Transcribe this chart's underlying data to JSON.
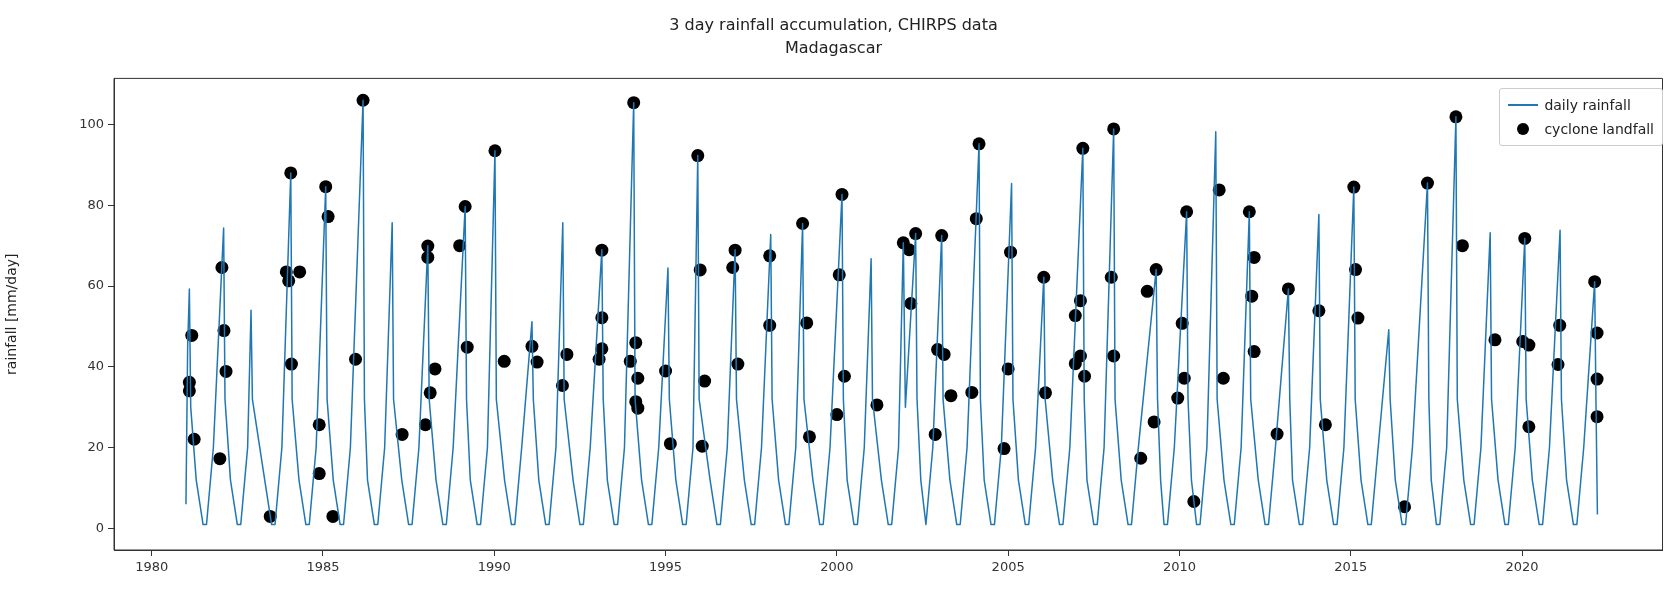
{
  "chart_data": {
    "type": "line",
    "title": "3 day rainfall accumulation, CHIRPS data",
    "subtitle": "Madagascar",
    "ylabel": "rainfall [mm/day]",
    "xlim": [
      1978.9,
      2024.1
    ],
    "ylim": [
      -5.3,
      111.4
    ],
    "xticks": [
      1980,
      1985,
      1990,
      1995,
      2000,
      2005,
      2010,
      2015,
      2020
    ],
    "yticks": [
      0,
      20,
      40,
      60,
      80,
      100
    ],
    "legend": "top right",
    "series": [
      {
        "name": "daily rainfall",
        "color": "#1f77b4",
        "line_style": "solid",
        "marker": "none",
        "x": [
          1981.0,
          1981.05,
          1981.1,
          1981.14,
          1981.3,
          1981.5,
          1981.6,
          1981.8,
          1982.1,
          1982.14,
          1982.3,
          1982.5,
          1982.6,
          1982.8,
          1982.9,
          1982.94,
          1983.3,
          1983.5,
          1983.6,
          1983.8,
          1984.06,
          1984.1,
          1984.3,
          1984.5,
          1984.6,
          1984.8,
          1985.08,
          1985.12,
          1985.3,
          1985.5,
          1985.6,
          1985.8,
          1986.17,
          1986.21,
          1986.3,
          1986.5,
          1986.6,
          1986.8,
          1987.02,
          1987.06,
          1987.3,
          1987.5,
          1987.6,
          1987.8,
          1988.06,
          1988.1,
          1988.3,
          1988.5,
          1988.6,
          1988.8,
          1989.15,
          1989.19,
          1989.3,
          1989.5,
          1989.6,
          1989.8,
          1990.02,
          1990.06,
          1990.3,
          1990.5,
          1990.6,
          1990.8,
          1991.1,
          1991.14,
          1991.3,
          1991.5,
          1991.6,
          1991.8,
          1992.0,
          1992.04,
          1992.3,
          1992.5,
          1992.6,
          1992.8,
          1993.14,
          1993.18,
          1993.3,
          1993.5,
          1993.6,
          1993.8,
          1994.07,
          1994.11,
          1994.3,
          1994.5,
          1994.6,
          1994.8,
          1995.07,
          1995.11,
          1995.3,
          1995.5,
          1995.6,
          1995.8,
          1995.94,
          1995.98,
          1996.3,
          1996.5,
          1996.6,
          1996.8,
          1997.03,
          1997.07,
          1997.3,
          1997.5,
          1997.6,
          1997.8,
          1998.07,
          1998.11,
          1998.3,
          1998.5,
          1998.6,
          1998.8,
          1999.0,
          1999.04,
          1999.3,
          1999.5,
          1999.6,
          1999.8,
          2000.15,
          2000.19,
          2000.3,
          2000.5,
          2000.6,
          2000.8,
          2001.0,
          2001.04,
          2001.3,
          2001.5,
          2001.6,
          2001.8,
          2001.94,
          2002.0,
          2002.3,
          2002.34,
          2002.45,
          2002.6,
          2002.8,
          2003.06,
          2003.1,
          2003.3,
          2003.5,
          2003.6,
          2003.8,
          2004.15,
          2004.19,
          2004.3,
          2004.5,
          2004.6,
          2004.8,
          2005.1,
          2005.14,
          2005.3,
          2005.5,
          2005.6,
          2005.8,
          2006.04,
          2006.08,
          2006.3,
          2006.5,
          2006.6,
          2006.8,
          2007.18,
          2007.22,
          2007.3,
          2007.5,
          2007.6,
          2007.8,
          2008.08,
          2008.12,
          2008.3,
          2008.5,
          2008.6,
          2008.8,
          2009.32,
          2009.36,
          2009.45,
          2009.55,
          2009.65,
          2009.85,
          2010.21,
          2010.25,
          2010.35,
          2010.5,
          2010.6,
          2010.8,
          2011.06,
          2011.1,
          2011.3,
          2011.5,
          2011.6,
          2011.8,
          2012.04,
          2012.08,
          2012.3,
          2012.5,
          2012.6,
          2012.8,
          2013.18,
          2013.22,
          2013.3,
          2013.5,
          2013.6,
          2013.8,
          2014.07,
          2014.11,
          2014.3,
          2014.5,
          2014.6,
          2014.8,
          2015.09,
          2015.13,
          2015.3,
          2015.5,
          2015.6,
          2015.8,
          2016.11,
          2016.15,
          2016.3,
          2016.5,
          2016.6,
          2016.8,
          2017.24,
          2017.28,
          2017.35,
          2017.5,
          2017.6,
          2017.8,
          2018.07,
          2018.11,
          2018.3,
          2018.5,
          2018.6,
          2018.8,
          2019.07,
          2019.11,
          2019.3,
          2019.5,
          2019.6,
          2019.8,
          2020.08,
          2020.12,
          2020.3,
          2020.5,
          2020.6,
          2020.8,
          2021.11,
          2021.15,
          2021.3,
          2021.5,
          2021.6,
          2021.8,
          2022.12,
          2022.16,
          2022.2
        ],
        "values": [
          6,
          45,
          59.3,
          30,
          12,
          1,
          1,
          20,
          74.4,
          32,
          12,
          1,
          1,
          20,
          54,
          32,
          12,
          1,
          1,
          20,
          88,
          32,
          12,
          1,
          1,
          20,
          84.6,
          32,
          12,
          1,
          1,
          20,
          106,
          32,
          12,
          1,
          1,
          20,
          75.7,
          32,
          12,
          1,
          1,
          20,
          70,
          32,
          12,
          1,
          1,
          20,
          79.7,
          32,
          12,
          1,
          1,
          20,
          93.5,
          32,
          12,
          1,
          1,
          20,
          51.2,
          32,
          12,
          1,
          1,
          20,
          75.7,
          32,
          12,
          1,
          1,
          20,
          69,
          32,
          12,
          1,
          1,
          20,
          105.4,
          32,
          12,
          1,
          1,
          20,
          64.5,
          32,
          12,
          1,
          1,
          20,
          92.3,
          32,
          12,
          1,
          1,
          20,
          69,
          32,
          12,
          1,
          1,
          20,
          72.8,
          32,
          12,
          1,
          1,
          20,
          75.5,
          32,
          12,
          1,
          1,
          20,
          82.7,
          32,
          12,
          1,
          1,
          20,
          66.8,
          32,
          12,
          1,
          1,
          20,
          70.7,
          30,
          73,
          32,
          12,
          1,
          20,
          72.5,
          32,
          12,
          1,
          1,
          20,
          95.2,
          32,
          12,
          1,
          1,
          20,
          85.4,
          32,
          12,
          1,
          1,
          20,
          62.2,
          32,
          12,
          1,
          1,
          20,
          94.1,
          32,
          12,
          1,
          1,
          20,
          98.9,
          32,
          12,
          1,
          1,
          20,
          64.1,
          32,
          12,
          1,
          1,
          20,
          78.4,
          32,
          12,
          1,
          1,
          20,
          98.2,
          32,
          12,
          1,
          1,
          20,
          78.4,
          32,
          12,
          1,
          1,
          20,
          59.3,
          32,
          12,
          1,
          1,
          20,
          77.7,
          32,
          12,
          1,
          1,
          20,
          84.5,
          32,
          12,
          1,
          1,
          20,
          49.2,
          32,
          12,
          1,
          1,
          20,
          85.5,
          32,
          12,
          1,
          1,
          20,
          101.9,
          32,
          12,
          1,
          1,
          20,
          73.2,
          32,
          12,
          1,
          1,
          20,
          71.8,
          32,
          12,
          1,
          1,
          20,
          73.8,
          32,
          12,
          1,
          1,
          20,
          61.1,
          30,
          3.5
        ]
      },
      {
        "name": "cyclone landfall",
        "type": "scatter",
        "color": "#000000",
        "marker": "circle",
        "x": [
          1981.17,
          1981.1,
          1981.1,
          1981.24,
          1982.05,
          1982.11,
          1982.17,
          1981.99,
          1983.46,
          1984.06,
          1983.93,
          1984.0,
          1984.32,
          1984.08,
          1985.08,
          1985.15,
          1984.89,
          1984.89,
          1985.29,
          1986.17,
          1985.95,
          1987.31,
          1988.06,
          1988.06,
          1988.13,
          1988.27,
          1987.99,
          1989.15,
          1988.99,
          1989.21,
          1990.02,
          1990.29,
          1991.1,
          1991.25,
          1992.12,
          1991.99,
          1993.14,
          1993.14,
          1993.14,
          1993.06,
          1994.07,
          1994.13,
          1993.97,
          1994.19,
          1994.13,
          1994.19,
          1995.0,
          1995.14,
          1995.94,
          1996.01,
          1996.14,
          1996.07,
          1997.03,
          1996.96,
          1997.11,
          1998.04,
          1998.04,
          1999.0,
          1999.12,
          1999.2,
          2000.15,
          2000.07,
          2000.22,
          2000.0,
          2001.17,
          2001.94,
          2002.11,
          2002.3,
          2002.16,
          2003.06,
          2002.94,
          2003.13,
          2003.33,
          2002.87,
          2004.15,
          2004.07,
          2003.94,
          2005.07,
          2005.0,
          2004.88,
          2006.04,
          2006.09,
          2007.18,
          2007.11,
          2006.96,
          2007.11,
          2006.96,
          2007.23,
          2008.08,
          2008.01,
          2008.08,
          2009.06,
          2009.32,
          2008.87,
          2009.26,
          2010.21,
          2010.08,
          2010.14,
          2009.95,
          2010.42,
          2011.16,
          2011.28,
          2012.04,
          2012.18,
          2012.11,
          2012.18,
          2013.18,
          2012.85,
          2014.07,
          2014.26,
          2015.09,
          2015.14,
          2015.21,
          2016.57,
          2017.24,
          2018.26,
          2018.07,
          2019.21,
          2020.08,
          2020.02,
          2020.2,
          2020.2,
          2021.1,
          2021.05,
          2022.12,
          2022.19,
          2022.19,
          2022.19
        ],
        "values": [
          47.8,
          36.2,
          34.1,
          22.1,
          64.6,
          49.0,
          38.9,
          17.3,
          3.0,
          88.0,
          63.5,
          61.3,
          63.5,
          40.7,
          84.6,
          77.2,
          25.7,
          13.6,
          3.0,
          106.0,
          41.9,
          23.3,
          69.9,
          67.1,
          33.6,
          39.5,
          25.7,
          79.7,
          70.0,
          44.9,
          93.5,
          41.4,
          45.1,
          41.2,
          43.1,
          35.4,
          68.9,
          52.2,
          44.5,
          41.9,
          105.4,
          46.0,
          41.4,
          37.2,
          31.4,
          29.8,
          39.0,
          21.0,
          92.3,
          64.0,
          36.5,
          20.4,
          68.9,
          64.6,
          40.7,
          67.5,
          50.3,
          75.5,
          50.9,
          22.7,
          82.7,
          62.8,
          37.7,
          28.2,
          30.6,
          70.7,
          69.0,
          73.0,
          55.7,
          72.5,
          44.3,
          43.1,
          32.9,
          23.3,
          95.2,
          76.7,
          33.7,
          68.4,
          39.5,
          19.8,
          62.2,
          33.6,
          94.1,
          56.4,
          52.7,
          42.7,
          40.8,
          37.7,
          98.9,
          62.2,
          42.7,
          58.7,
          64.1,
          17.4,
          26.4,
          78.4,
          50.8,
          37.2,
          32.3,
          6.7,
          83.8,
          37.2,
          78.4,
          67.1,
          57.5,
          43.8,
          59.3,
          23.4,
          53.9,
          25.7,
          84.5,
          64.1,
          52.1,
          5.4,
          85.5,
          70.0,
          101.9,
          46.7,
          71.8,
          46.3,
          45.4,
          25.2,
          50.3,
          40.6,
          61.1,
          48.4,
          37.0,
          27.7
        ]
      }
    ]
  }
}
